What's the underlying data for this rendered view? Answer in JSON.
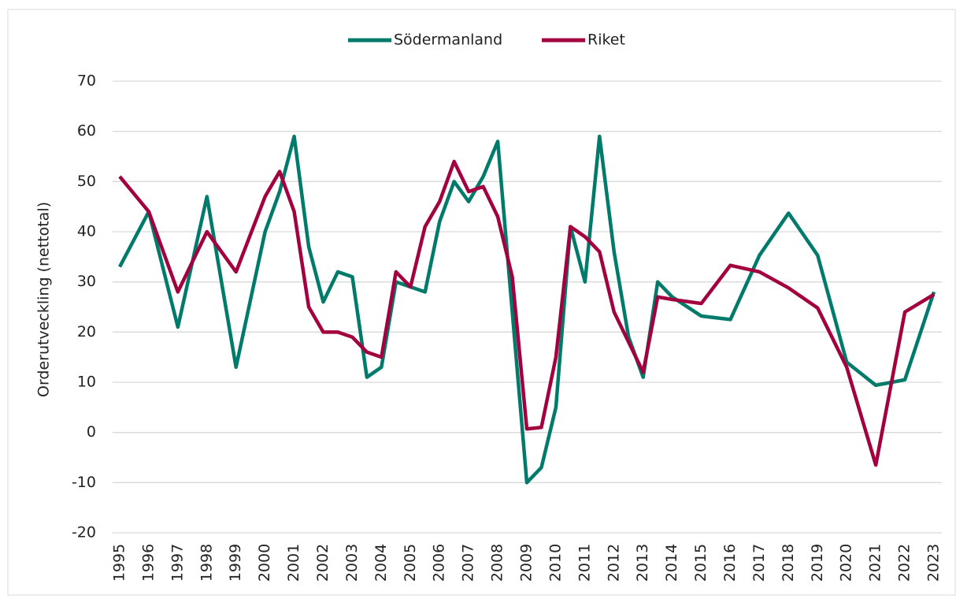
{
  "chart_data": {
    "type": "line",
    "y_label": "Orderutveckling (nettotal)",
    "x": [
      1995,
      1996,
      1997,
      1998,
      1999,
      2000,
      2000.5,
      2001,
      2001.5,
      2002,
      2002.5,
      2003,
      2003.5,
      2004,
      2004.5,
      2005,
      2005.5,
      2006,
      2006.5,
      2007,
      2007.5,
      2008,
      2008.5,
      2009,
      2009.5,
      2010,
      2010.5,
      2011,
      2011.5,
      2012,
      2012.5,
      2013,
      2013.5,
      2014,
      2015,
      2016,
      2017,
      2018,
      2019,
      2020,
      2021,
      2022,
      2023
    ],
    "series": [
      {
        "name": "Södermanland",
        "color": "#007a6a",
        "values": [
          33,
          44,
          21,
          47,
          13,
          40,
          48,
          59,
          37,
          26,
          32,
          31,
          11,
          13,
          30,
          29,
          28,
          42,
          50,
          46,
          51,
          58,
          24,
          -10,
          -7,
          5,
          41,
          30,
          59,
          36,
          19,
          11,
          30,
          27,
          23.2,
          22.5,
          35.3,
          43.7,
          35.3,
          14,
          9.4,
          10.5,
          28
        ]
      },
      {
        "name": "Riket",
        "color": "#a3003f",
        "values": [
          51,
          44,
          28,
          40,
          32,
          47,
          52,
          44,
          25,
          20,
          20,
          19,
          16,
          15,
          32,
          29,
          41,
          46,
          54,
          48,
          49,
          43,
          31,
          0.7,
          1,
          15,
          41,
          39,
          36,
          24,
          18,
          12,
          27,
          26.5,
          25.7,
          33.3,
          32,
          28.8,
          24.8,
          13,
          -6.5,
          24,
          27.5
        ]
      }
    ],
    "xlim": [
      1995,
      2023
    ],
    "xticks": [
      1995,
      1996,
      1997,
      1998,
      1999,
      2000,
      2001,
      2002,
      2003,
      2004,
      2005,
      2006,
      2007,
      2008,
      2009,
      2010,
      2011,
      2012,
      2013,
      2014,
      2015,
      2016,
      2017,
      2018,
      2019,
      2020,
      2021,
      2022,
      2023
    ],
    "ylim": [
      -20,
      70
    ],
    "yticks": [
      -20,
      -10,
      0,
      10,
      20,
      30,
      40,
      50,
      60,
      70
    ],
    "grid": true,
    "legend": "top"
  }
}
